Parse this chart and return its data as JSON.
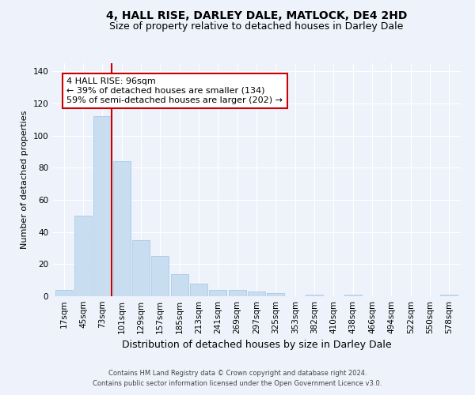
{
  "title": "4, HALL RISE, DARLEY DALE, MATLOCK, DE4 2HD",
  "subtitle": "Size of property relative to detached houses in Darley Dale",
  "xlabel": "Distribution of detached houses by size in Darley Dale",
  "ylabel": "Number of detached properties",
  "bar_color": "#c8ddf0",
  "bar_edge_color": "#a0c4e8",
  "background_color": "#eef3fb",
  "grid_color": "#ffffff",
  "categories": [
    "17sqm",
    "45sqm",
    "73sqm",
    "101sqm",
    "129sqm",
    "157sqm",
    "185sqm",
    "213sqm",
    "241sqm",
    "269sqm",
    "297sqm",
    "325sqm",
    "353sqm",
    "382sqm",
    "410sqm",
    "438sqm",
    "466sqm",
    "494sqm",
    "522sqm",
    "550sqm",
    "578sqm"
  ],
  "values": [
    4,
    50,
    112,
    84,
    35,
    25,
    14,
    8,
    4,
    4,
    3,
    2,
    0,
    1,
    0,
    1,
    0,
    0,
    0,
    0,
    1
  ],
  "ylim": [
    0,
    145
  ],
  "yticks": [
    0,
    20,
    40,
    60,
    80,
    100,
    120,
    140
  ],
  "property_line_color": "#cc0000",
  "property_line_x": 3.0,
  "annotation_text": "4 HALL RISE: 96sqm\n← 39% of detached houses are smaller (134)\n59% of semi-detached houses are larger (202) →",
  "annotation_box_color": "#ffffff",
  "annotation_box_edge_color": "#cc0000",
  "footer_line1": "Contains HM Land Registry data © Crown copyright and database right 2024.",
  "footer_line2": "Contains public sector information licensed under the Open Government Licence v3.0.",
  "title_fontsize": 10,
  "subtitle_fontsize": 9,
  "xlabel_fontsize": 9,
  "ylabel_fontsize": 8,
  "tick_fontsize": 7.5,
  "annotation_fontsize": 8,
  "footer_fontsize": 6
}
